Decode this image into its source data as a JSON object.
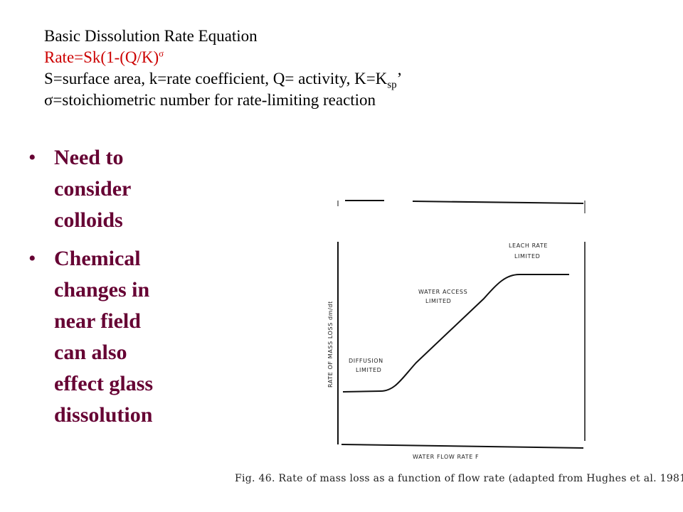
{
  "header": {
    "title": "Basic Dissolution Rate Equation",
    "equation": "Rate=Sk(1-(Q/K)",
    "equation_sup": "σ",
    "definitions_prefix": "S=surface area, k=rate coefficient, Q= activity, K=K",
    "definitions_sub": "sp",
    "definitions_suffix": "’",
    "sigma_symbol": "σ",
    "sigma_line": "=stoichiometric number for rate-limiting reaction"
  },
  "bullets": [
    {
      "symbol": "•",
      "text": "Need to\nconsider\ncolloids"
    },
    {
      "symbol": "•",
      "text": "Chemical\nchanges in\nnear field\ncan also\neffect glass\ndissolution"
    }
  ],
  "figure": {
    "ylabel": "RATE OF MASS LOSS dm/dt",
    "xlabel": "WATER FLOW RATE F",
    "regions": {
      "diffusion": [
        "DIFFUSION",
        "LIMITED"
      ],
      "water": [
        "WATER ACCESS",
        "LIMITED"
      ],
      "leach": [
        "LEACH RATE",
        "LIMITED"
      ]
    },
    "caption": "Fig. 46. Rate of mass loss as a function of flow rate (adapted from Hughes et al. 1981)."
  }
}
